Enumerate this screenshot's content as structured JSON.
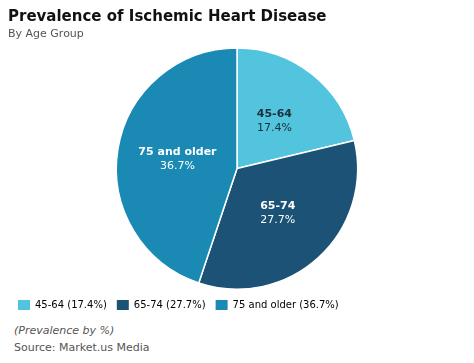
{
  "chart_data": {
    "type": "pie",
    "title": "Prevalence of Ischemic Heart Disease",
    "subtitle": "By Age Group",
    "categories": [
      "45-64",
      "65-74",
      "75 and older"
    ],
    "values": [
      17.4,
      27.7,
      36.7
    ],
    "value_labels": [
      "17.4%",
      "27.7%",
      "36.7%"
    ],
    "colors": [
      "#52c4de",
      "#1b5276",
      "#1a8ab5"
    ],
    "label_colors": [
      "#1a2f3a",
      "#ffffff",
      "#ffffff"
    ],
    "data_labels": true,
    "legend": "lower left",
    "legend_labels": [
      "45-64 (17.4%)",
      "65-74 (27.7%)",
      "75 and older (36.7%)"
    ],
    "annotations": [
      "(Prevalence by %)",
      "Source: Market.us Media"
    ]
  }
}
